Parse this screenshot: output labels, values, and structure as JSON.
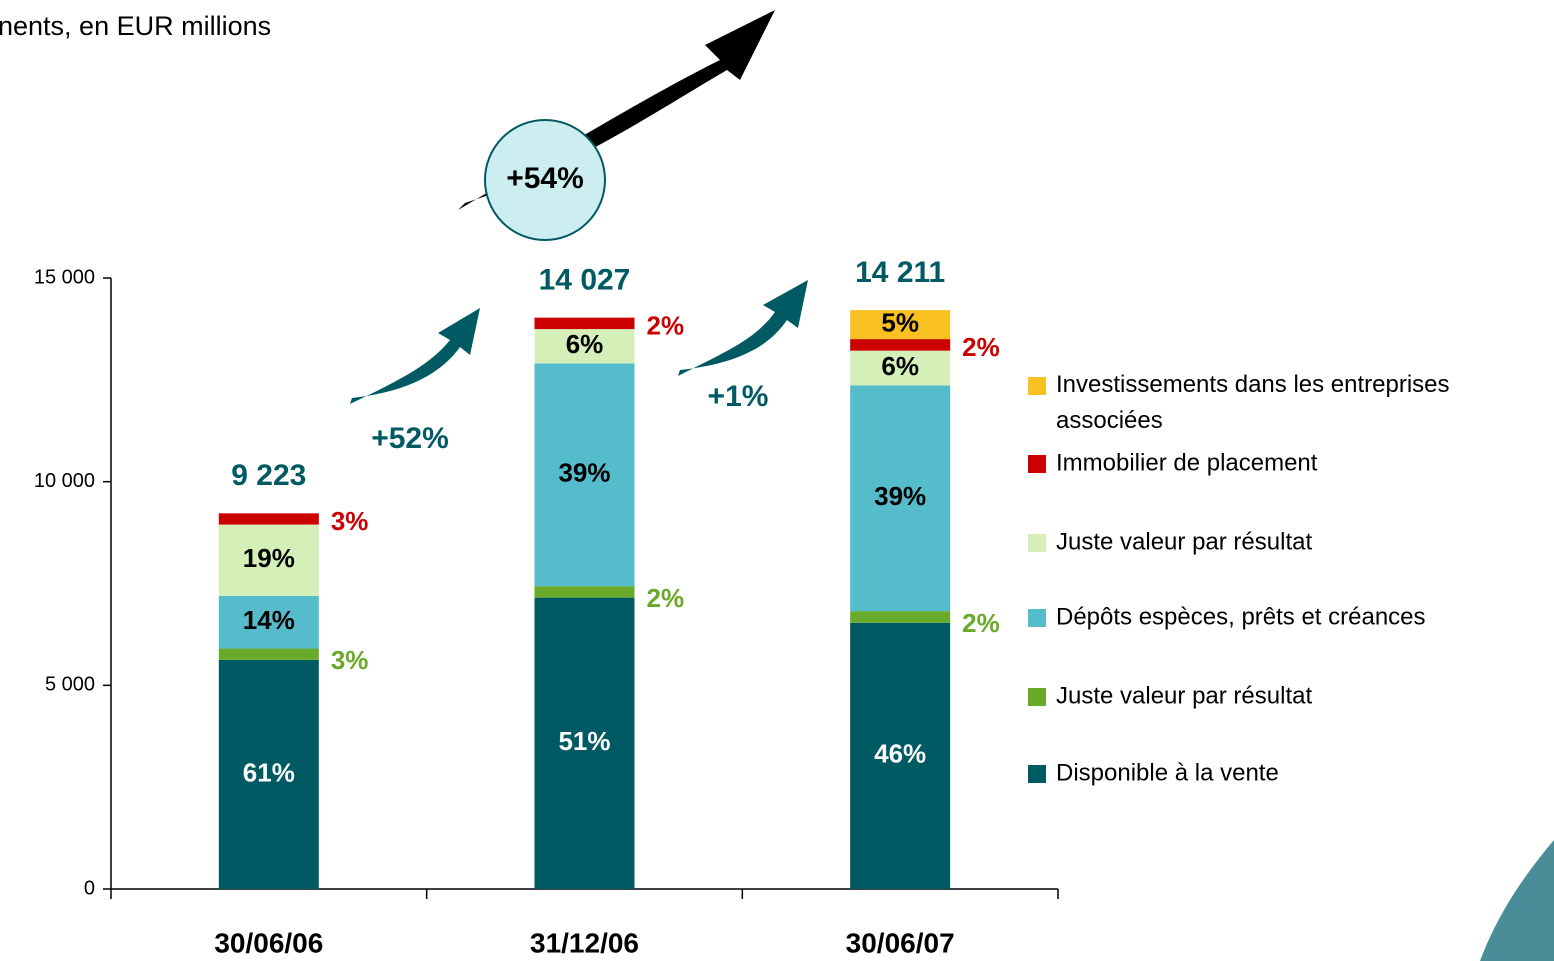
{
  "chart_data": {
    "type": "stacked-bar",
    "title": "nents, en EUR millions",
    "categories": [
      "30/06/06",
      "31/12/06",
      "30/06/07"
    ],
    "series": [
      {
        "name": "Disponible à la vente",
        "color": "#005a64",
        "values": [
          5626,
          7153,
          6537
        ],
        "value_labels": [
          "61%",
          "51%",
          "46%"
        ]
      },
      {
        "name": "Juste valeur par résultat",
        "color": "#6aaa2a",
        "values": [
          277,
          281,
          284
        ],
        "value_labels": [
          "3%",
          "2%",
          "2%"
        ]
      },
      {
        "name": "Dépôts espèces, prêts et créances",
        "color": "#55bccb",
        "values": [
          1291,
          5470,
          5542
        ],
        "value_labels": [
          "14%",
          "39%",
          "39%"
        ]
      },
      {
        "name": "Juste valeur par résultat",
        "color": "#d4f0b8",
        "values": [
          1752,
          842,
          853
        ],
        "value_labels": [
          "19%",
          "6%",
          "6%"
        ]
      },
      {
        "name": "Immobilier de placement",
        "color": "#cc0000",
        "values": [
          277,
          281,
          284
        ],
        "value_labels": [
          "3%",
          "2%",
          "2%"
        ]
      },
      {
        "name": "Investissements dans les entreprises associées",
        "color": "#f8c020",
        "values": [
          null,
          null,
          711
        ],
        "value_labels": [
          null,
          null,
          "5%"
        ]
      }
    ],
    "totals": [
      9223,
      14027,
      14211
    ],
    "total_labels": [
      "9 223",
      "14 027",
      "14 211"
    ],
    "annotations": [
      "+54%",
      "+52%",
      "+1%"
    ],
    "ylim": [
      0,
      15000
    ],
    "yticks": [
      0,
      {
        "value": 5000,
        "label": "5 000"
      },
      {
        "value": 10000,
        "label": "10 000"
      },
      {
        "value": 15000,
        "label": "15 000"
      }
    ],
    "legend": "right"
  }
}
